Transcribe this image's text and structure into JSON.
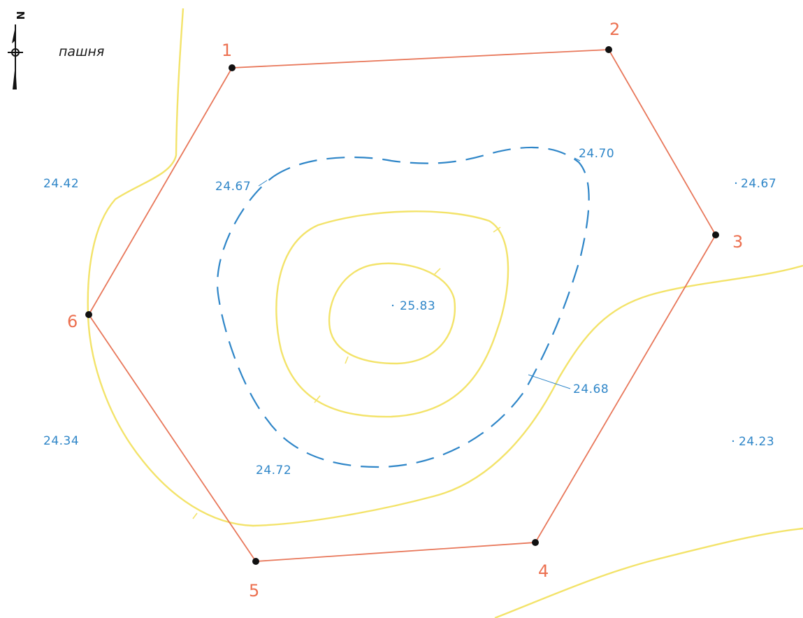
{
  "colors": {
    "boundary": "#e8775a",
    "contour": "#f3e36a",
    "elevation_text": "#2f86c8",
    "vertex_label": "#ec7050",
    "station": "#111111"
  },
  "north_arrow": {
    "letter": "N",
    "icon": "north-arrow-icon"
  },
  "land_use": "пашня",
  "vertices": [
    {
      "label": "1"
    },
    {
      "label": "2"
    },
    {
      "label": "3"
    },
    {
      "label": "4"
    },
    {
      "label": "5"
    },
    {
      "label": "6"
    }
  ],
  "elevations": {
    "top_left": "24.42",
    "top_right": "24.67",
    "bottom_left": "24.34",
    "bottom_right": "24.23",
    "summit": "25.83",
    "dashed_nw": "24.67",
    "dashed_ne": "24.70",
    "dashed_se": "24.68",
    "dashed_sw": "24.72"
  }
}
